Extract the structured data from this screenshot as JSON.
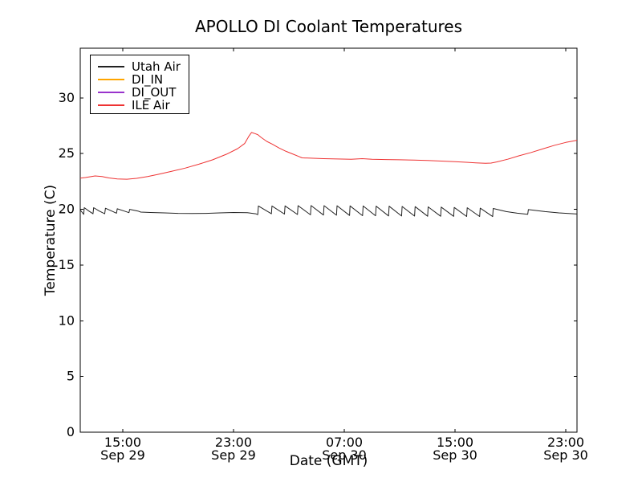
{
  "chart_data": {
    "type": "line",
    "title": "APOLLO DI Coolant Temperatures",
    "xlabel": "Date (GMT)",
    "ylabel": "Temperature (C)",
    "x_unit": "hours since Sep 29 00:00 GMT",
    "xlim": [
      11.93,
      47.81
    ],
    "ylim": [
      0,
      34.46
    ],
    "grid": false,
    "legend_position": "upper left",
    "y_ticks": [
      0,
      5,
      10,
      15,
      20,
      25,
      30
    ],
    "x_ticks": [
      {
        "t": 15,
        "time": "15:00",
        "date": "Sep 29"
      },
      {
        "t": 23,
        "time": "23:00",
        "date": "Sep 29"
      },
      {
        "t": 31,
        "time": "07:00",
        "date": "Sep 30"
      },
      {
        "t": 39,
        "time": "15:00",
        "date": "Sep 30"
      },
      {
        "t": 47,
        "time": "23:00",
        "date": "Sep 30"
      }
    ],
    "axis_color": "#000000",
    "background_color": "#ffffff",
    "series": [
      {
        "name": "Utah Air",
        "color": "#222222",
        "points": [
          [
            11.93,
            19.95
          ],
          [
            12.05,
            19.75
          ],
          [
            12.18,
            19.55
          ],
          [
            12.22,
            20.15
          ],
          [
            12.55,
            19.85
          ],
          [
            12.85,
            19.6
          ],
          [
            12.9,
            20.15
          ],
          [
            13.3,
            19.85
          ],
          [
            13.7,
            19.6
          ],
          [
            13.75,
            20.1
          ],
          [
            14.2,
            19.85
          ],
          [
            14.55,
            19.65
          ],
          [
            14.6,
            20.05
          ],
          [
            15.1,
            19.85
          ],
          [
            15.45,
            19.7
          ],
          [
            15.5,
            20.0
          ],
          [
            16.1,
            19.85
          ],
          [
            16.3,
            19.75
          ],
          [
            17,
            19.72
          ],
          [
            18,
            19.68
          ],
          [
            19,
            19.64
          ],
          [
            20,
            19.62
          ],
          [
            21,
            19.64
          ],
          [
            22,
            19.68
          ],
          [
            23,
            19.72
          ],
          [
            24,
            19.7
          ],
          [
            24.6,
            19.6
          ],
          [
            24.75,
            19.52
          ],
          [
            24.8,
            20.3
          ],
          [
            25.74,
            19.6
          ],
          [
            25.78,
            20.3
          ],
          [
            26.68,
            19.57
          ],
          [
            26.72,
            20.31
          ],
          [
            27.62,
            19.54
          ],
          [
            27.66,
            20.33
          ],
          [
            28.56,
            19.51
          ],
          [
            28.6,
            20.34
          ],
          [
            29.5,
            19.49
          ],
          [
            29.54,
            20.33
          ],
          [
            30.44,
            19.47
          ],
          [
            30.48,
            20.32
          ],
          [
            31.38,
            19.45
          ],
          [
            31.42,
            20.31
          ],
          [
            32.32,
            19.43
          ],
          [
            32.36,
            20.3
          ],
          [
            33.26,
            19.42
          ],
          [
            33.3,
            20.29
          ],
          [
            34.2,
            19.41
          ],
          [
            34.24,
            20.28
          ],
          [
            35.14,
            19.4
          ],
          [
            35.18,
            20.26
          ],
          [
            36.08,
            19.39
          ],
          [
            36.12,
            20.24
          ],
          [
            37.02,
            19.38
          ],
          [
            37.06,
            20.22
          ],
          [
            37.96,
            19.38
          ],
          [
            38.0,
            20.2
          ],
          [
            38.9,
            19.37
          ],
          [
            38.94,
            20.17
          ],
          [
            39.84,
            19.36
          ],
          [
            39.88,
            20.14
          ],
          [
            40.78,
            19.36
          ],
          [
            40.82,
            20.11
          ],
          [
            41.72,
            19.35
          ],
          [
            41.76,
            20.08
          ],
          [
            42.7,
            19.8
          ],
          [
            43.5,
            19.65
          ],
          [
            44.25,
            19.55
          ],
          [
            44.3,
            19.98
          ],
          [
            45.5,
            19.8
          ],
          [
            46.5,
            19.68
          ],
          [
            47.81,
            19.58
          ]
        ]
      },
      {
        "name": "DI_IN",
        "color": "#ffa500",
        "points": []
      },
      {
        "name": "DI_OUT",
        "color": "#9933cc",
        "points": []
      },
      {
        "name": "ILE Air",
        "color": "#ee3333",
        "points": [
          [
            11.93,
            22.8
          ],
          [
            12.3,
            22.85
          ],
          [
            13.0,
            23.0
          ],
          [
            13.5,
            22.95
          ],
          [
            14.0,
            22.82
          ],
          [
            14.6,
            22.73
          ],
          [
            15.3,
            22.7
          ],
          [
            16.0,
            22.78
          ],
          [
            16.8,
            22.95
          ],
          [
            17.5,
            23.12
          ],
          [
            18.5,
            23.4
          ],
          [
            19.5,
            23.7
          ],
          [
            20.5,
            24.05
          ],
          [
            21.5,
            24.45
          ],
          [
            22.5,
            24.95
          ],
          [
            23.3,
            25.45
          ],
          [
            23.8,
            25.9
          ],
          [
            24.1,
            26.55
          ],
          [
            24.3,
            26.9
          ],
          [
            24.55,
            26.8
          ],
          [
            24.75,
            26.7
          ],
          [
            25.0,
            26.45
          ],
          [
            25.4,
            26.1
          ],
          [
            25.8,
            25.85
          ],
          [
            26.3,
            25.5
          ],
          [
            26.8,
            25.2
          ],
          [
            27.3,
            24.95
          ],
          [
            27.7,
            24.75
          ],
          [
            27.95,
            24.62
          ],
          [
            28.4,
            24.6
          ],
          [
            29.5,
            24.55
          ],
          [
            30.5,
            24.52
          ],
          [
            31.5,
            24.5
          ],
          [
            32.3,
            24.55
          ],
          [
            33.0,
            24.5
          ],
          [
            34.0,
            24.47
          ],
          [
            35.0,
            24.45
          ],
          [
            36.0,
            24.42
          ],
          [
            37.0,
            24.38
          ],
          [
            38.0,
            24.33
          ],
          [
            39.0,
            24.27
          ],
          [
            39.8,
            24.22
          ],
          [
            40.5,
            24.17
          ],
          [
            41.2,
            24.13
          ],
          [
            41.6,
            24.15
          ],
          [
            42.0,
            24.25
          ],
          [
            42.8,
            24.5
          ],
          [
            43.6,
            24.8
          ],
          [
            44.5,
            25.1
          ],
          [
            45.4,
            25.45
          ],
          [
            46.2,
            25.75
          ],
          [
            47.0,
            26.0
          ],
          [
            47.81,
            26.2
          ]
        ]
      }
    ]
  }
}
